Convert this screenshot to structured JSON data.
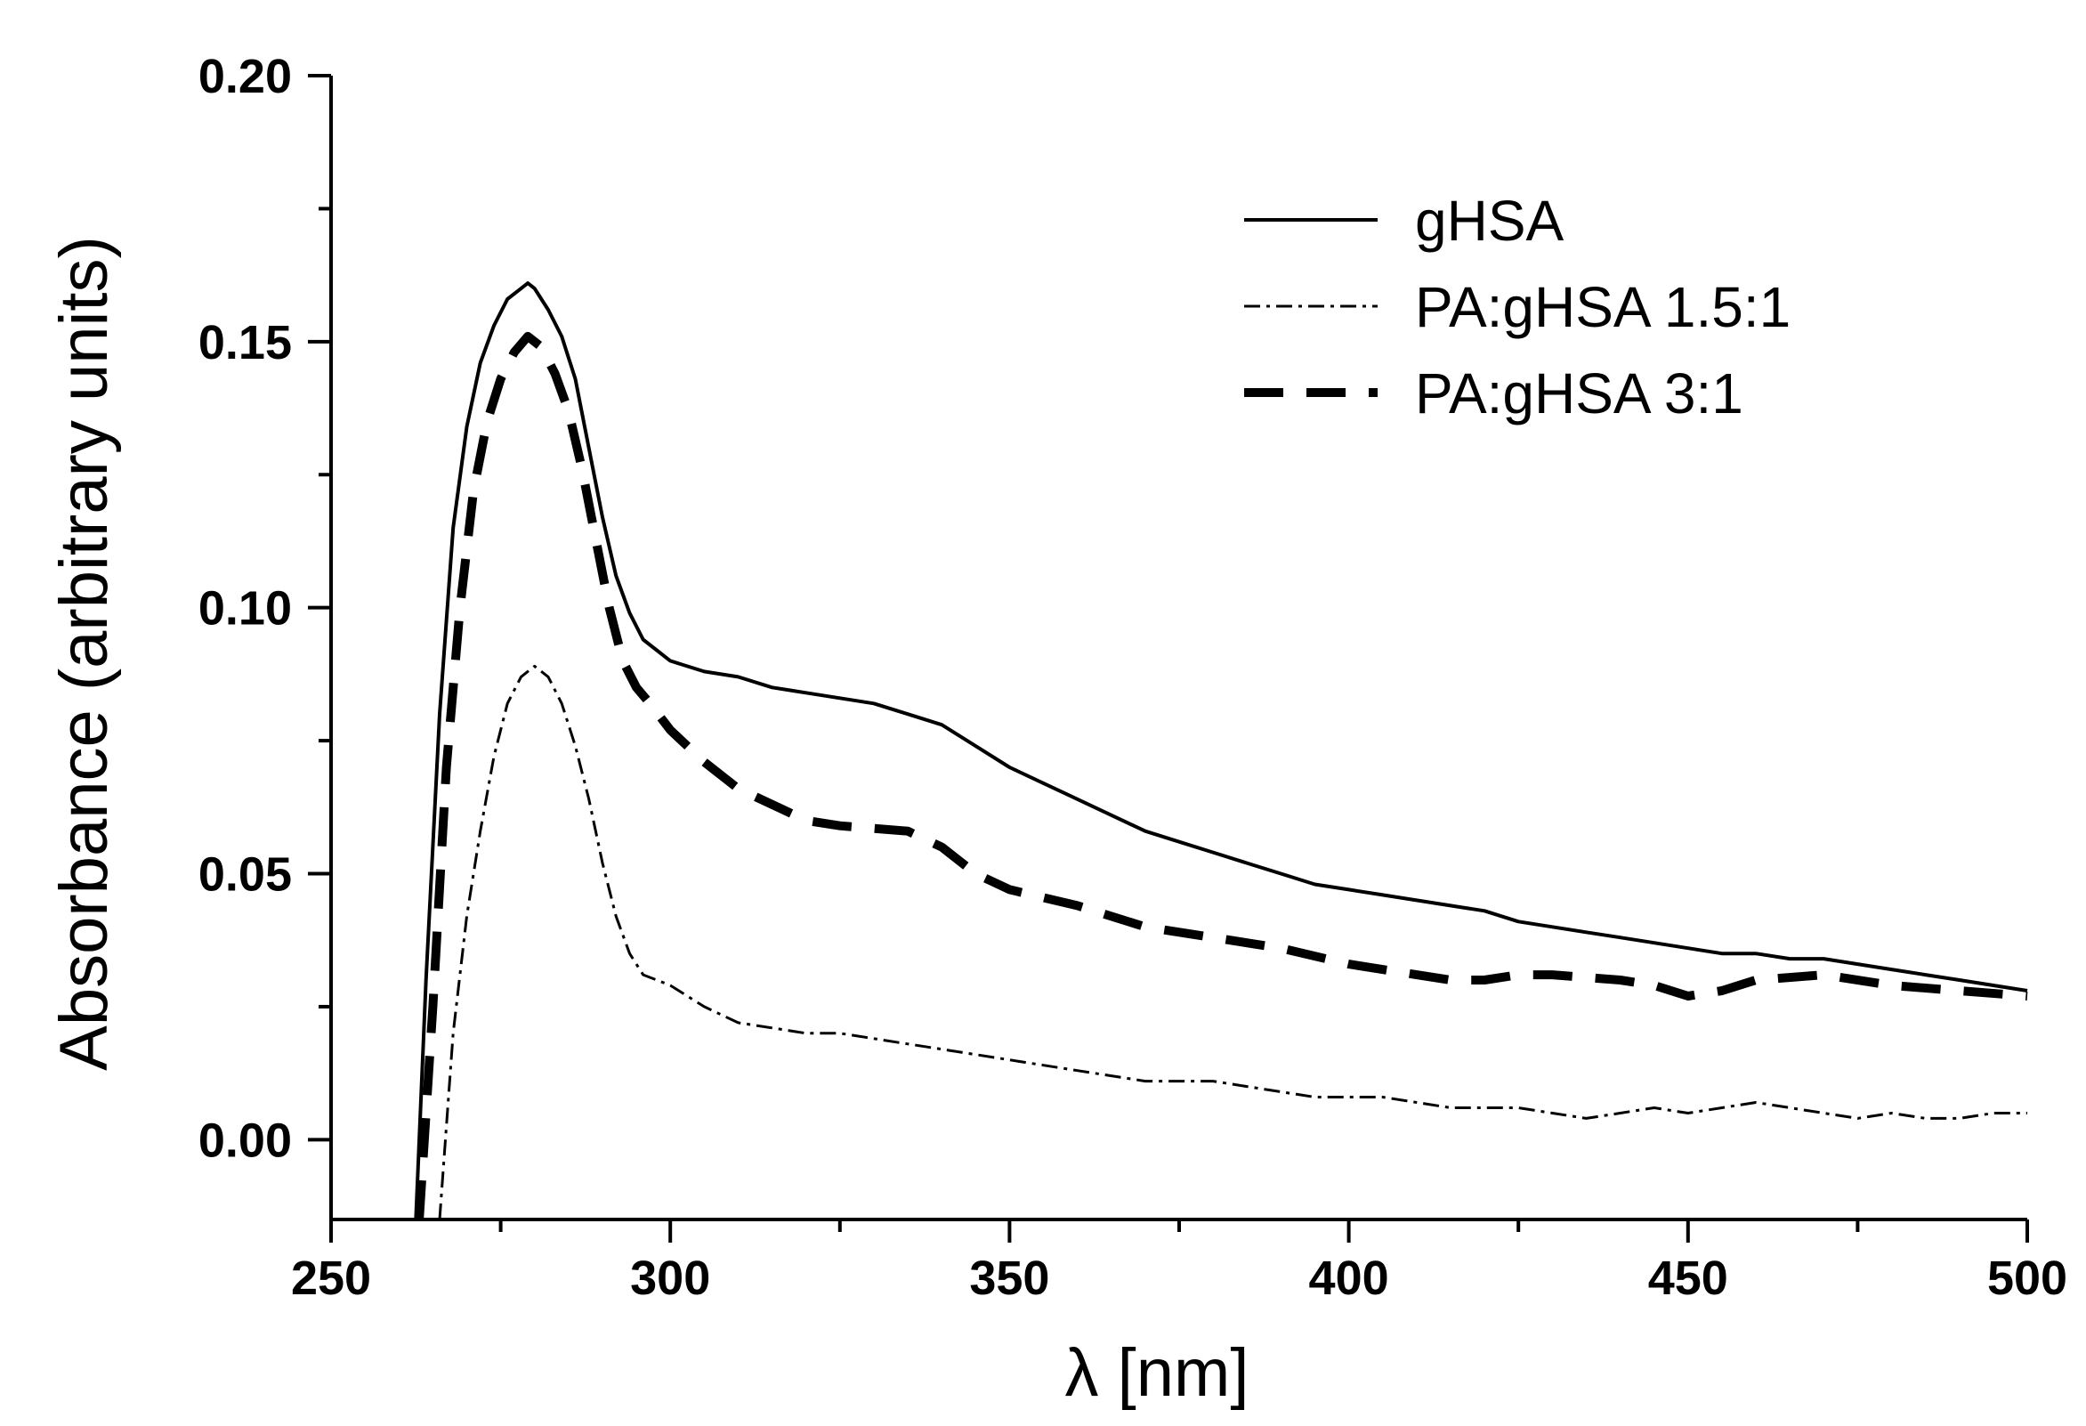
{
  "chart_data": {
    "type": "line",
    "title": "",
    "xlabel": "λ [nm]",
    "ylabel": "Absorbance (arbitrary units)",
    "xlim": [
      250,
      500
    ],
    "ylim": [
      -0.015,
      0.2
    ],
    "x_ticks": [
      "250",
      "300",
      "350",
      "400",
      "450",
      "500"
    ],
    "y_ticks": [
      "0.00",
      "0.05",
      "0.10",
      "0.15",
      "0.20"
    ],
    "grid": false,
    "legend_position": "top-right",
    "series": [
      {
        "name": "gHSA",
        "style": "solid",
        "color": "#000000",
        "x": [
          262.5,
          264,
          266,
          268,
          270,
          272,
          274,
          276,
          278,
          279,
          280,
          282,
          284,
          286,
          288,
          290,
          292,
          294,
          296,
          298,
          300,
          305,
          310,
          315,
          320,
          325,
          330,
          335,
          340,
          345,
          350,
          355,
          360,
          365,
          370,
          375,
          380,
          385,
          390,
          395,
          400,
          405,
          410,
          415,
          420,
          425,
          430,
          435,
          440,
          445,
          450,
          455,
          460,
          465,
          470,
          475,
          480,
          485,
          490,
          495,
          500
        ],
        "y": [
          -0.015,
          0.03,
          0.08,
          0.115,
          0.134,
          0.146,
          0.153,
          0.158,
          0.16,
          0.161,
          0.16,
          0.156,
          0.151,
          0.143,
          0.13,
          0.117,
          0.106,
          0.099,
          0.094,
          0.092,
          0.09,
          0.088,
          0.087,
          0.085,
          0.084,
          0.083,
          0.082,
          0.08,
          0.078,
          0.074,
          0.07,
          0.067,
          0.064,
          0.061,
          0.058,
          0.056,
          0.054,
          0.052,
          0.05,
          0.048,
          0.047,
          0.046,
          0.045,
          0.044,
          0.043,
          0.041,
          0.04,
          0.039,
          0.038,
          0.037,
          0.036,
          0.035,
          0.035,
          0.034,
          0.034,
          0.033,
          0.032,
          0.031,
          0.03,
          0.029,
          0.028
        ]
      },
      {
        "name": "PA:gHSA  1.5:1",
        "style": "dashdot",
        "color": "#000000",
        "x": [
          266,
          268,
          270,
          272,
          274,
          276,
          278,
          280,
          282,
          284,
          286,
          288,
          290,
          292,
          294,
          296,
          298,
          300,
          305,
          310,
          315,
          320,
          325,
          330,
          335,
          340,
          345,
          350,
          355,
          360,
          365,
          370,
          375,
          380,
          385,
          390,
          395,
          400,
          405,
          410,
          415,
          420,
          425,
          430,
          435,
          440,
          445,
          450,
          455,
          460,
          465,
          470,
          475,
          480,
          485,
          490,
          495,
          500
        ],
        "y": [
          -0.015,
          0.02,
          0.042,
          0.058,
          0.072,
          0.082,
          0.087,
          0.089,
          0.087,
          0.082,
          0.074,
          0.064,
          0.052,
          0.042,
          0.035,
          0.031,
          0.03,
          0.029,
          0.025,
          0.022,
          0.021,
          0.02,
          0.02,
          0.019,
          0.018,
          0.017,
          0.016,
          0.015,
          0.014,
          0.013,
          0.012,
          0.011,
          0.011,
          0.011,
          0.01,
          0.009,
          0.008,
          0.008,
          0.008,
          0.007,
          0.006,
          0.006,
          0.006,
          0.005,
          0.004,
          0.005,
          0.006,
          0.005,
          0.006,
          0.007,
          0.006,
          0.005,
          0.004,
          0.005,
          0.004,
          0.004,
          0.005,
          0.005
        ]
      },
      {
        "name": "PA:gHSA 3:1",
        "style": "dash",
        "color": "#000000",
        "x": [
          263,
          265,
          267,
          269,
          271,
          273,
          275,
          277,
          279,
          281,
          283,
          285,
          287,
          289,
          291,
          293,
          295,
          297,
          300,
          305,
          310,
          320,
          325,
          335,
          340,
          345,
          350,
          360,
          370,
          380,
          390,
          400,
          410,
          415,
          420,
          425,
          430,
          440,
          445,
          450,
          455,
          460,
          470,
          480,
          490,
          500
        ],
        "y": [
          -0.015,
          0.025,
          0.07,
          0.1,
          0.122,
          0.135,
          0.143,
          0.148,
          0.151,
          0.149,
          0.144,
          0.137,
          0.126,
          0.113,
          0.1,
          0.09,
          0.085,
          0.082,
          0.077,
          0.071,
          0.066,
          0.06,
          0.059,
          0.058,
          0.055,
          0.05,
          0.047,
          0.044,
          0.04,
          0.038,
          0.036,
          0.033,
          0.031,
          0.03,
          0.03,
          0.031,
          0.031,
          0.03,
          0.029,
          0.027,
          0.028,
          0.03,
          0.031,
          0.029,
          0.028,
          0.027
        ]
      }
    ]
  }
}
